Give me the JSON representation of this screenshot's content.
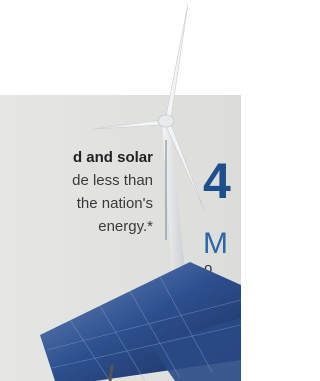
{
  "text_block": {
    "lines": [
      "d and solar",
      "de less than",
      "the nation's",
      "energy.*"
    ]
  },
  "stat": {
    "number": "4",
    "line1": "M",
    "line2": "o"
  }
}
